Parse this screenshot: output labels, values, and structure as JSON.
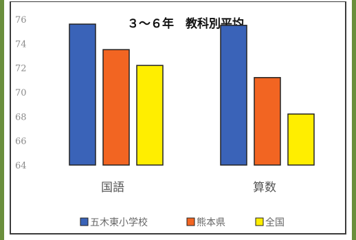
{
  "chart_data": {
    "type": "bar",
    "title": "３～６年　教科別平均",
    "xlabel": "",
    "ylabel": "",
    "categories": [
      "国語",
      "算数"
    ],
    "series": [
      {
        "name": "五木東小学校",
        "color": "#3a63b8",
        "values": [
          75.6,
          75.5
        ]
      },
      {
        "name": "熊本県",
        "color": "#f26522",
        "values": [
          73.5,
          71.2
        ]
      },
      {
        "name": "全国",
        "color": "#ffee00",
        "values": [
          72.2,
          68.2
        ]
      }
    ],
    "yticks": [
      "64",
      "66",
      "68",
      "70",
      "72",
      "74",
      "76"
    ],
    "ylim": [
      64,
      76
    ],
    "grid": false,
    "legend": "bottom"
  }
}
